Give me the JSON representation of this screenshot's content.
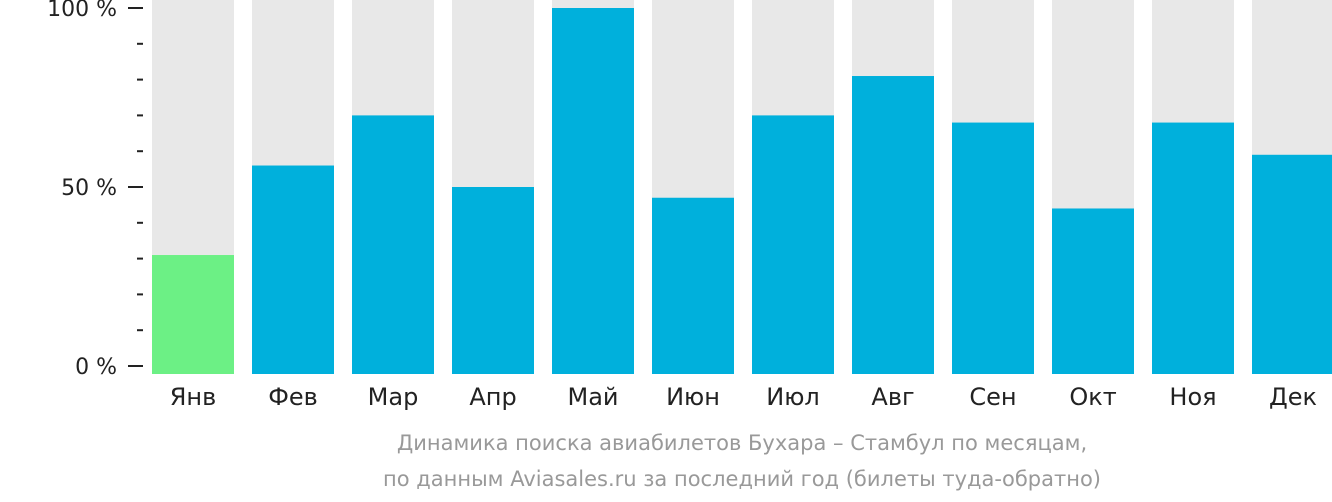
{
  "chart_data": {
    "type": "bar",
    "categories": [
      "Янв",
      "Фев",
      "Мар",
      "Апр",
      "Май",
      "Июн",
      "Июл",
      "Авг",
      "Сен",
      "Окт",
      "Ноя",
      "Дек"
    ],
    "values": [
      31,
      56,
      70,
      50,
      100,
      47,
      70,
      81,
      68,
      44,
      68,
      59
    ],
    "highlight_index": 0,
    "ylim": [
      0,
      100
    ],
    "yticks": [
      {
        "value": 0,
        "label": "0 %"
      },
      {
        "value": 50,
        "label": "50 %"
      },
      {
        "value": 100,
        "label": "100 %"
      }
    ],
    "minor_tick_step": 10,
    "xlabel": "",
    "ylabel": "",
    "colors": {
      "bar": "#00b0dc",
      "highlight": "#6cf085",
      "track": "#e8e8e8",
      "axis": "#222222",
      "caption": "#999999"
    }
  },
  "caption": {
    "line1": "Динамика поиска авиабилетов Бухара – Стамбул по месяцам,",
    "line2": "по данным Aviasales.ru за последний год (билеты туда-обратно)"
  }
}
